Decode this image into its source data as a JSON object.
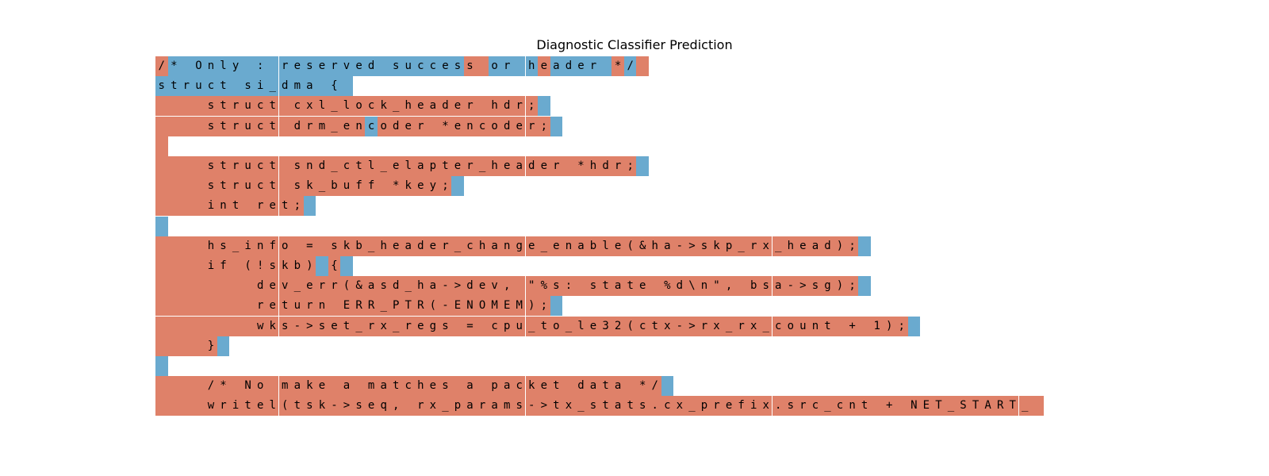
{
  "title": "Diagnostic Classifier Prediction",
  "colors": {
    "positive": "#6aaacf",
    "negative": "#df8169"
  },
  "lines": [
    {
      "text": "/* Only : reserved success or header */",
      "blue_ranges": [
        [
          1,
          24
        ],
        [
          27,
          30
        ],
        [
          32,
          36
        ],
        [
          38,
          38
        ]
      ]
    },
    {
      "text": "struct si_dma {",
      "blue_ranges": [
        [
          0,
          15
        ]
      ]
    },
    {
      "text": "    struct cxl_lock_header hdr;",
      "blue_ranges": [
        [
          31,
          31
        ]
      ]
    },
    {
      "text": "    struct drm_encoder *encoder;",
      "blue_ranges": [
        [
          17,
          17
        ],
        [
          32,
          32
        ]
      ]
    },
    {
      "text": "",
      "blue_ranges": []
    },
    {
      "text": "    struct snd_ctl_elapter_header *hdr;",
      "blue_ranges": [
        [
          39,
          39
        ]
      ]
    },
    {
      "text": "    struct sk_buff *key;",
      "blue_ranges": [
        [
          24,
          24
        ]
      ]
    },
    {
      "text": "    int ret;",
      "blue_ranges": [
        [
          12,
          12
        ]
      ]
    },
    {
      "text": "",
      "blue_ranges": [
        [
          0,
          0
        ]
      ]
    },
    {
      "text": "    hs_info = skb_header_change_enable(&ha->skp_rx_head);",
      "blue_ranges": [
        [
          57,
          57
        ]
      ]
    },
    {
      "text": "    if (!skb) {",
      "blue_ranges": [
        [
          13,
          13
        ],
        [
          15,
          15
        ]
      ]
    },
    {
      "text": "        dev_err(&asd_ha->dev, \"%s: state %d\\n\", bsa->sg);",
      "blue_ranges": [
        [
          57,
          57
        ]
      ]
    },
    {
      "text": "        return ERR_PTR(-ENOMEM);",
      "blue_ranges": [
        [
          32,
          32
        ]
      ]
    },
    {
      "text": "        wks->set_rx_regs = cpu_to_le32(ctx->rx_rx_count + 1);",
      "blue_ranges": [
        [
          61,
          61
        ]
      ]
    },
    {
      "text": "    }",
      "blue_ranges": [
        [
          5,
          5
        ]
      ]
    },
    {
      "text": "",
      "blue_ranges": [
        [
          0,
          0
        ]
      ]
    },
    {
      "text": "    /* No make a matches a packet data */",
      "blue_ranges": [
        [
          41,
          41
        ]
      ]
    },
    {
      "text": "    writel(tsk->seq, rx_params->tx_stats.cx_prefix.src_cnt + NET_START_",
      "blue_ranges": []
    }
  ]
}
